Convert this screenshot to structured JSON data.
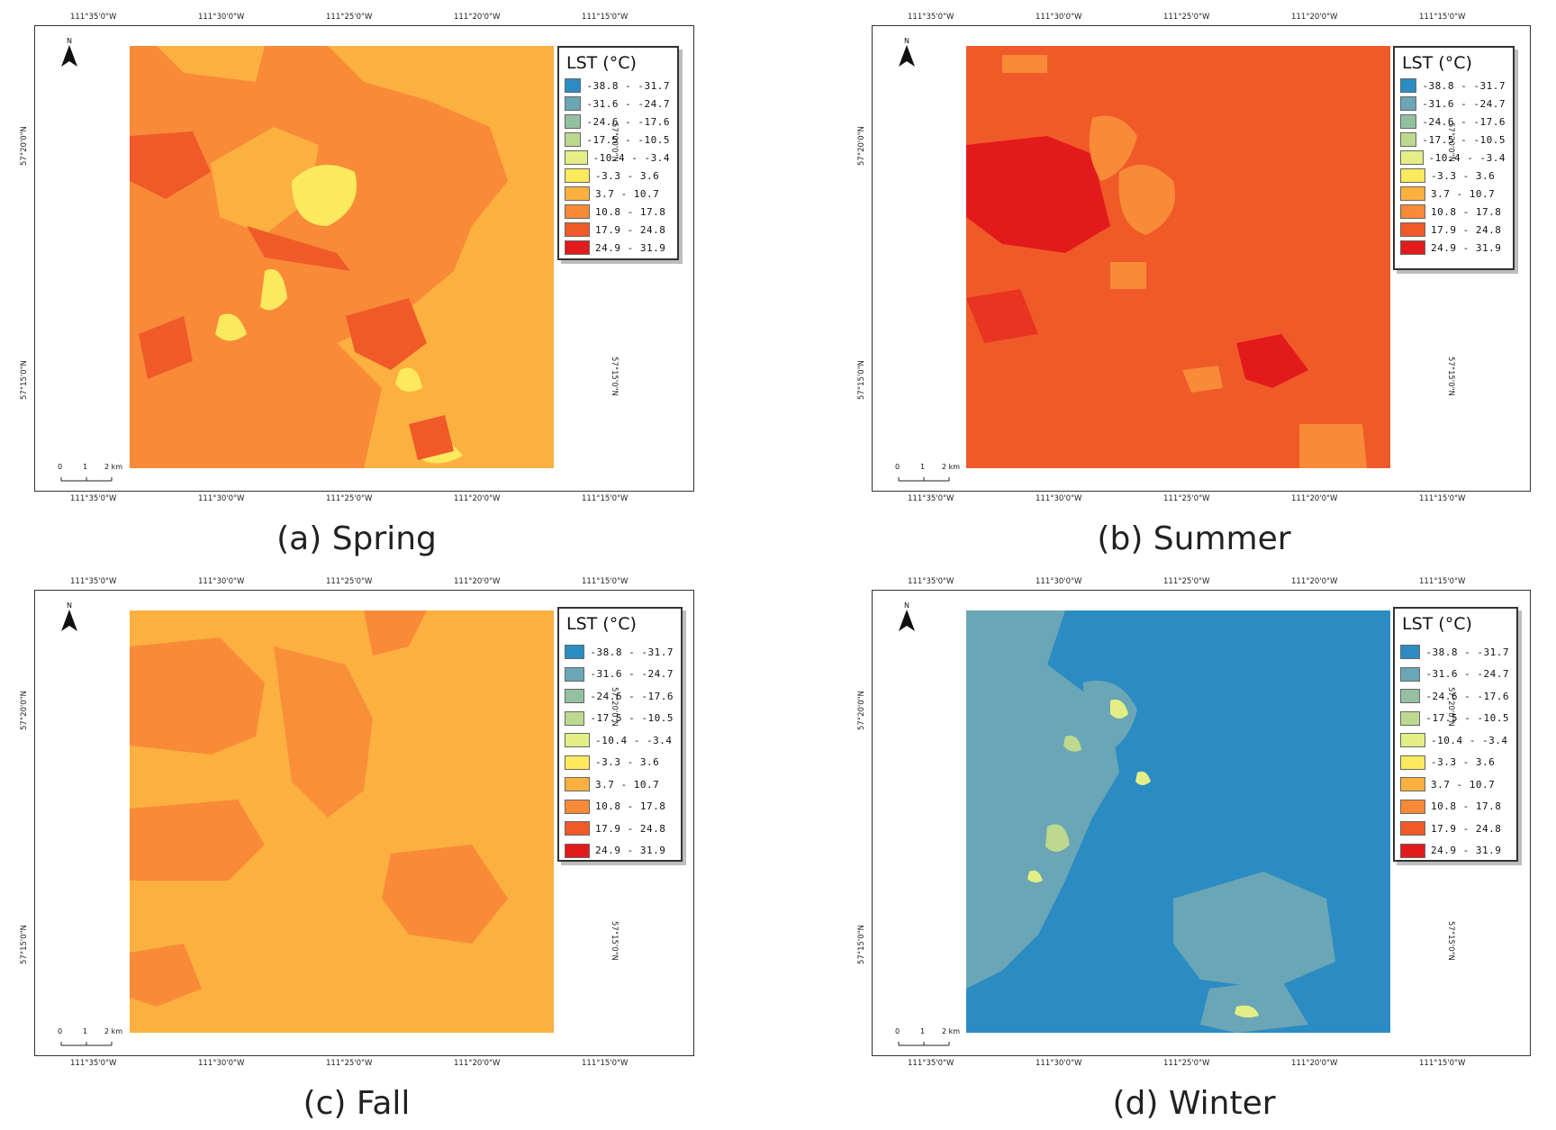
{
  "legend": {
    "title": "LST (°C)",
    "classes": [
      {
        "label": "-38.8 - -31.7",
        "color": "#2b8cc4"
      },
      {
        "label": "-31.6 - -24.7",
        "color": "#6ba6b6"
      },
      {
        "label": "-24.6 - -17.6",
        "color": "#93c19f"
      },
      {
        "label": "-17.5 - -10.5",
        "color": "#bcd98f"
      },
      {
        "label": "-10.4 - -3.4",
        "color": "#e3ef86"
      },
      {
        "label": "-3.3 - 3.6",
        "color": "#fbe95e"
      },
      {
        "label": "3.7 - 10.7",
        "color": "#fbb040"
      },
      {
        "label": "10.8 - 17.8",
        "color": "#f98a38"
      },
      {
        "label": "17.9 - 24.8",
        "color": "#f05a28"
      },
      {
        "label": "24.9 - 31.9",
        "color": "#e31a1c"
      }
    ]
  },
  "axes": {
    "lon_ticks": [
      "111°35'0\"W",
      "111°30'0\"W",
      "111°25'0\"W",
      "111°20'0\"W",
      "111°15'0\"W"
    ],
    "lat_ticks": [
      "57°20'0\"N",
      "57°15'0\"N"
    ]
  },
  "north_label": "N",
  "scale": {
    "labels": [
      "0",
      "1",
      "2 km"
    ]
  },
  "panels": [
    {
      "caption": "(a) Spring",
      "base": "#f98a38",
      "season": "spring"
    },
    {
      "caption": "(b) Summer",
      "base": "#f05a28",
      "season": "summer"
    },
    {
      "caption": "(c) Fall",
      "base": "#fbb040",
      "season": "fall"
    },
    {
      "caption": "(d) Winter",
      "base": "#2b8cc4",
      "season": "winter"
    }
  ]
}
